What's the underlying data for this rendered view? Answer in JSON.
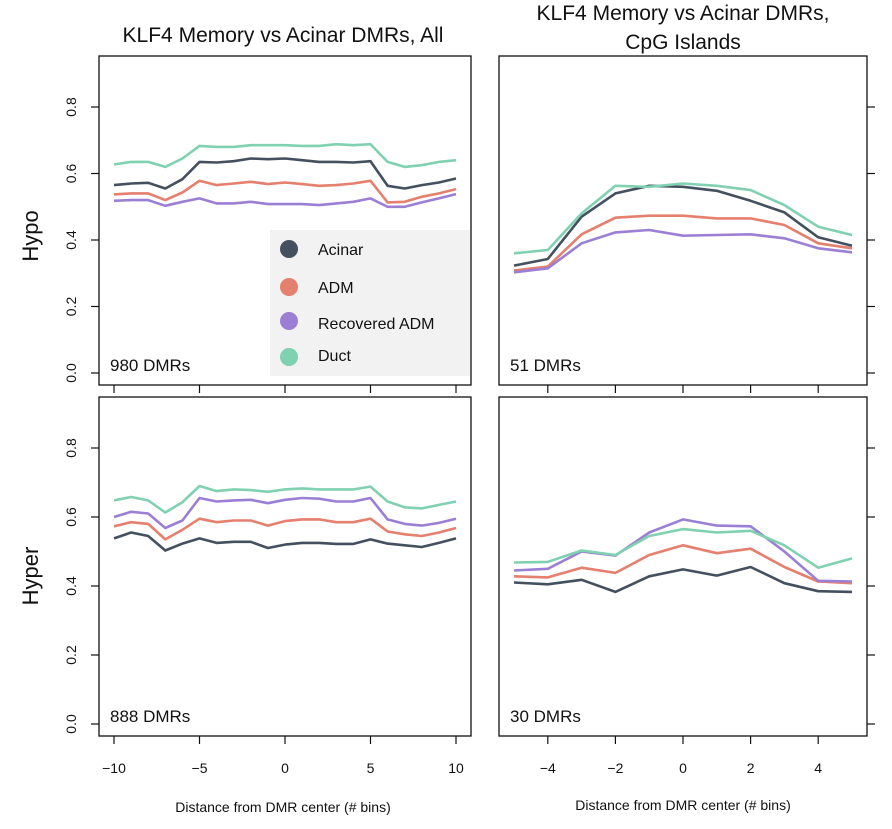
{
  "figure": {
    "titles": [
      "KLF4 Memory vs Acinar DMRs, All",
      "KLF4 Memory vs Acinar DMRs,",
      "CpG Islands"
    ],
    "row_labels": [
      "Hypo",
      "Hyper"
    ],
    "xlabel": "Distance from DMR center (# bins)"
  },
  "legend": {
    "placement": "inside top-left panel, center",
    "entries": [
      {
        "name": "Acinar",
        "color": "#44505f"
      },
      {
        "name": "ADM",
        "color": "#e57f6e"
      },
      {
        "name": "Recovered ADM",
        "color": "#9b7fd4"
      },
      {
        "name": "Duct",
        "color": "#7fd1b2"
      }
    ]
  },
  "chart_data": [
    {
      "type": "line",
      "title": "KLF4 Memory vs Acinar DMRs, All",
      "row": "Hypo",
      "annotation": "980 DMRs",
      "xlim": [
        -10,
        10
      ],
      "ylim": [
        0.0,
        0.8
      ],
      "xticks": [
        -10,
        -5,
        0,
        5,
        10
      ],
      "yticks": [
        0.0,
        0.2,
        0.4,
        0.6,
        0.8
      ],
      "grid": false,
      "x": [
        -10,
        -9,
        -8,
        -7,
        -6,
        -5,
        -4,
        -3,
        -2,
        -1,
        0,
        1,
        2,
        3,
        4,
        5,
        6,
        7,
        8,
        9,
        10
      ],
      "series": [
        {
          "name": "Acinar",
          "values": [
            0.565,
            0.57,
            0.572,
            0.555,
            0.583,
            0.635,
            0.633,
            0.637,
            0.645,
            0.643,
            0.645,
            0.64,
            0.635,
            0.635,
            0.633,
            0.637,
            0.563,
            0.555,
            0.565,
            0.573,
            0.585
          ]
        },
        {
          "name": "ADM",
          "values": [
            0.537,
            0.54,
            0.54,
            0.52,
            0.543,
            0.578,
            0.565,
            0.57,
            0.575,
            0.568,
            0.573,
            0.568,
            0.563,
            0.565,
            0.57,
            0.578,
            0.513,
            0.515,
            0.53,
            0.54,
            0.553
          ]
        },
        {
          "name": "Recovered ADM",
          "values": [
            0.518,
            0.52,
            0.52,
            0.503,
            0.515,
            0.525,
            0.51,
            0.51,
            0.515,
            0.508,
            0.508,
            0.508,
            0.505,
            0.51,
            0.515,
            0.525,
            0.5,
            0.5,
            0.513,
            0.525,
            0.538
          ]
        },
        {
          "name": "Duct",
          "values": [
            0.627,
            0.635,
            0.635,
            0.62,
            0.645,
            0.683,
            0.68,
            0.68,
            0.685,
            0.685,
            0.685,
            0.683,
            0.683,
            0.688,
            0.685,
            0.688,
            0.635,
            0.62,
            0.625,
            0.635,
            0.64
          ]
        }
      ]
    },
    {
      "type": "line",
      "title": "KLF4 Memory vs Acinar DMRs, CpG Islands",
      "row": "Hypo",
      "annotation": "51 DMRs",
      "xlim": [
        -5,
        5
      ],
      "ylim": [
        0.0,
        0.8
      ],
      "xticks": [
        -4,
        -2,
        0,
        2,
        4
      ],
      "yticks": [
        0.0,
        0.2,
        0.4,
        0.6,
        0.8
      ],
      "grid": false,
      "x": [
        -5,
        -4,
        -3,
        -2,
        -1,
        0,
        1,
        2,
        3,
        4,
        5
      ],
      "series": [
        {
          "name": "Acinar",
          "values": [
            0.323,
            0.343,
            0.47,
            0.54,
            0.563,
            0.56,
            0.548,
            0.518,
            0.483,
            0.408,
            0.383
          ]
        },
        {
          "name": "ADM",
          "values": [
            0.308,
            0.32,
            0.417,
            0.467,
            0.473,
            0.473,
            0.465,
            0.465,
            0.445,
            0.39,
            0.375
          ]
        },
        {
          "name": "Recovered ADM",
          "values": [
            0.303,
            0.315,
            0.39,
            0.423,
            0.43,
            0.413,
            0.415,
            0.417,
            0.405,
            0.375,
            0.363
          ]
        },
        {
          "name": "Duct",
          "values": [
            0.36,
            0.37,
            0.48,
            0.563,
            0.56,
            0.57,
            0.563,
            0.55,
            0.505,
            0.44,
            0.415
          ]
        }
      ]
    },
    {
      "type": "line",
      "title": "KLF4 Memory vs Acinar DMRs, All",
      "row": "Hyper",
      "annotation": "888 DMRs",
      "xlim": [
        -10,
        10
      ],
      "ylim": [
        0.0,
        0.8
      ],
      "xticks": [
        -10,
        -5,
        0,
        5,
        10
      ],
      "yticks": [
        0.0,
        0.2,
        0.4,
        0.6,
        0.8
      ],
      "grid": false,
      "x": [
        -10,
        -9,
        -8,
        -7,
        -6,
        -5,
        -4,
        -3,
        -2,
        -1,
        0,
        1,
        2,
        3,
        4,
        5,
        6,
        7,
        8,
        9,
        10
      ],
      "series": [
        {
          "name": "Acinar",
          "values": [
            0.538,
            0.555,
            0.545,
            0.503,
            0.523,
            0.538,
            0.525,
            0.528,
            0.528,
            0.51,
            0.52,
            0.525,
            0.525,
            0.522,
            0.522,
            0.535,
            0.523,
            0.518,
            0.513,
            0.525,
            0.538
          ]
        },
        {
          "name": "ADM",
          "values": [
            0.573,
            0.585,
            0.58,
            0.535,
            0.563,
            0.595,
            0.585,
            0.59,
            0.59,
            0.575,
            0.588,
            0.593,
            0.593,
            0.585,
            0.585,
            0.595,
            0.558,
            0.55,
            0.545,
            0.555,
            0.568
          ]
        },
        {
          "name": "Recovered ADM",
          "values": [
            0.6,
            0.615,
            0.61,
            0.568,
            0.59,
            0.655,
            0.645,
            0.648,
            0.65,
            0.64,
            0.65,
            0.655,
            0.653,
            0.645,
            0.645,
            0.655,
            0.593,
            0.58,
            0.575,
            0.583,
            0.595
          ]
        },
        {
          "name": "Duct",
          "values": [
            0.648,
            0.658,
            0.648,
            0.613,
            0.643,
            0.69,
            0.675,
            0.68,
            0.678,
            0.673,
            0.68,
            0.683,
            0.68,
            0.68,
            0.68,
            0.688,
            0.645,
            0.628,
            0.625,
            0.635,
            0.645
          ]
        }
      ]
    },
    {
      "type": "line",
      "title": "KLF4 Memory vs Acinar DMRs, CpG Islands",
      "row": "Hyper",
      "annotation": "30 DMRs",
      "xlim": [
        -5,
        5
      ],
      "ylim": [
        0.0,
        0.8
      ],
      "xticks": [
        -4,
        -2,
        0,
        2,
        4
      ],
      "yticks": [
        0.0,
        0.2,
        0.4,
        0.6,
        0.8
      ],
      "grid": false,
      "x": [
        -5,
        -4,
        -3,
        -2,
        -1,
        0,
        1,
        2,
        3,
        4,
        5
      ],
      "series": [
        {
          "name": "Acinar",
          "values": [
            0.41,
            0.405,
            0.418,
            0.383,
            0.428,
            0.448,
            0.43,
            0.455,
            0.408,
            0.385,
            0.383
          ]
        },
        {
          "name": "ADM",
          "values": [
            0.428,
            0.425,
            0.453,
            0.438,
            0.49,
            0.518,
            0.495,
            0.508,
            0.455,
            0.413,
            0.408
          ]
        },
        {
          "name": "Recovered ADM",
          "values": [
            0.445,
            0.45,
            0.5,
            0.488,
            0.555,
            0.593,
            0.575,
            0.573,
            0.5,
            0.415,
            0.413
          ]
        },
        {
          "name": "Duct",
          "values": [
            0.468,
            0.47,
            0.503,
            0.49,
            0.545,
            0.565,
            0.555,
            0.56,
            0.518,
            0.453,
            0.48
          ]
        }
      ]
    }
  ]
}
